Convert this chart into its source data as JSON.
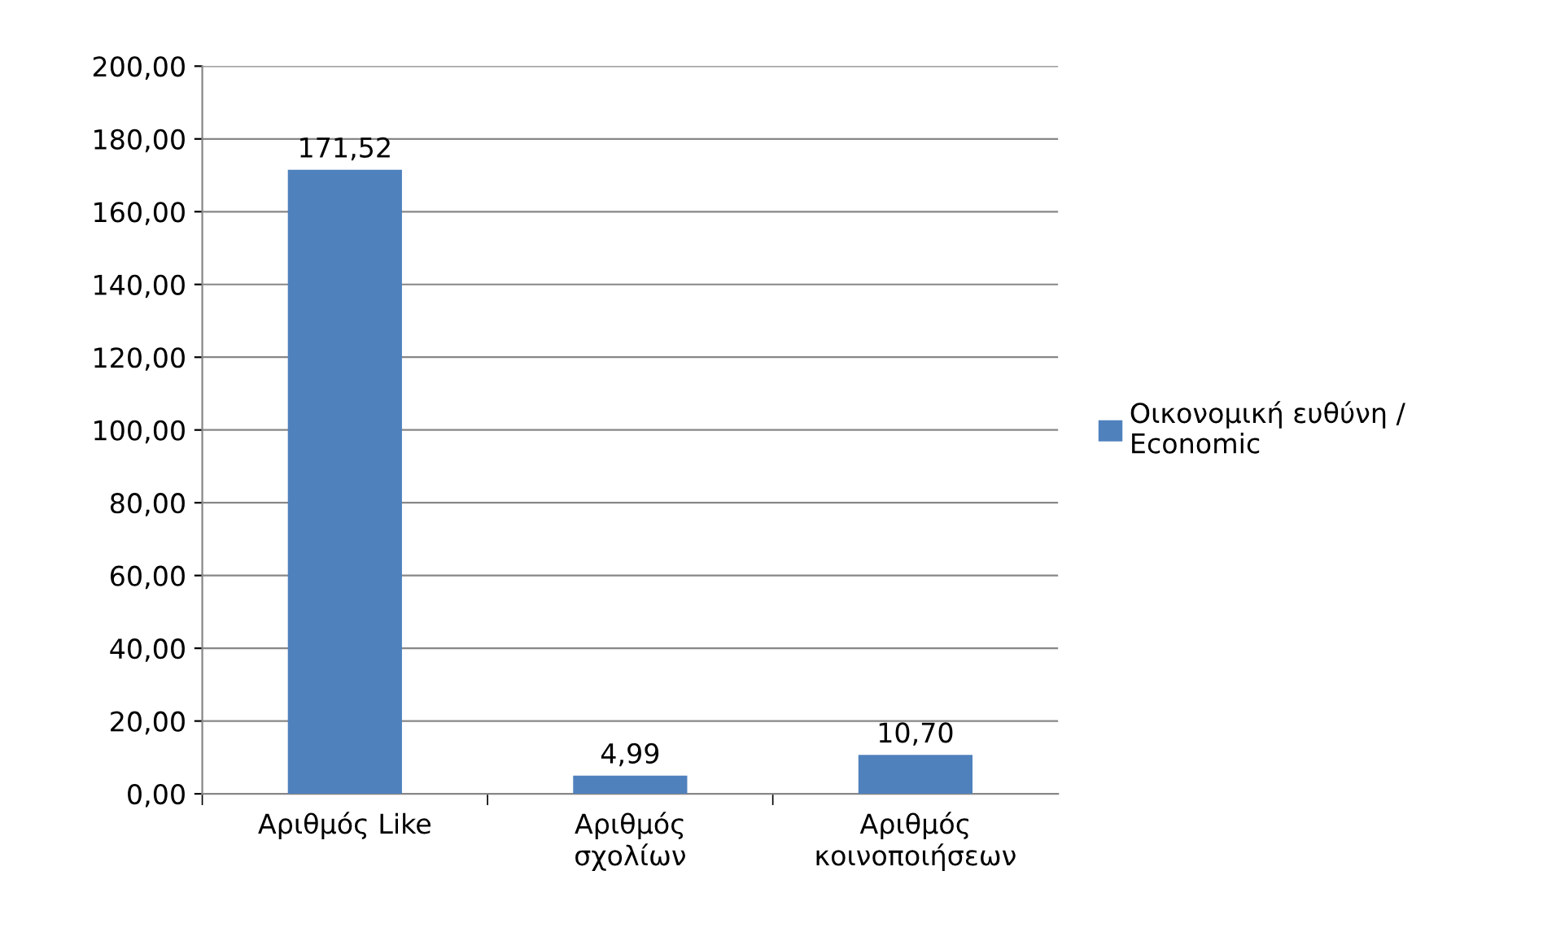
{
  "chart_data": {
    "type": "bar",
    "categories": [
      "Αριθμός Like",
      "Αριθμός\nσχολίων",
      "Αριθμός\nκοινοποιήσεων"
    ],
    "series": [
      {
        "name": "Οικονομική ευθύνη /\nEconomic",
        "color": "#4f81bd",
        "values": [
          171.52,
          4.99,
          10.7
        ],
        "value_labels": [
          "171,52",
          "4,99",
          "10,70"
        ]
      }
    ],
    "ylim": [
      0,
      200
    ],
    "yticks": [
      {
        "value": 0,
        "label": "0,00"
      },
      {
        "value": 20,
        "label": "20,00"
      },
      {
        "value": 40,
        "label": "40,00"
      },
      {
        "value": 60,
        "label": "60,00"
      },
      {
        "value": 80,
        "label": "80,00"
      },
      {
        "value": 100,
        "label": "100,00"
      },
      {
        "value": 120,
        "label": "120,00"
      },
      {
        "value": 140,
        "label": "140,00"
      },
      {
        "value": 160,
        "label": "160,00"
      },
      {
        "value": 180,
        "label": "180,00"
      },
      {
        "value": 200,
        "label": "200,00"
      }
    ],
    "grid": "y",
    "legend": "right"
  }
}
